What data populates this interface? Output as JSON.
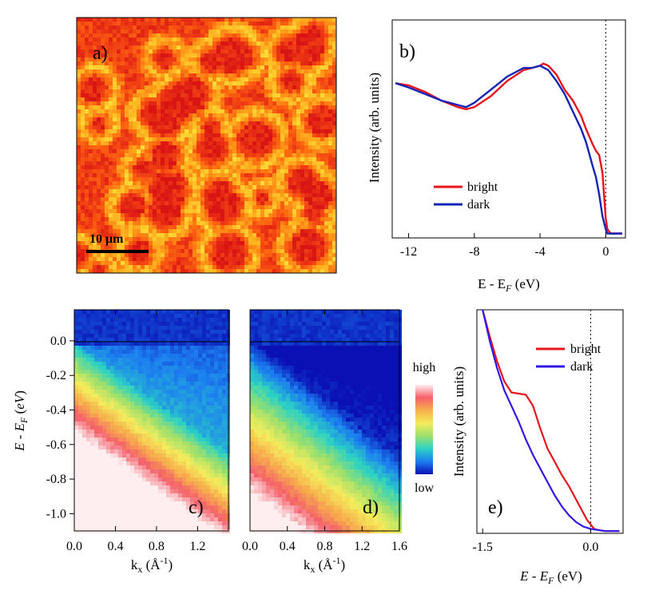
{
  "chart_data": [
    {
      "id": "a",
      "type": "heatmap",
      "panel_label": "a)",
      "scale_bar_label": "10 μm",
      "colors": [
        "#d91414",
        "#ee3a14",
        "#ff6a10",
        "#ffae1e",
        "#ffe43a"
      ]
    },
    {
      "id": "b",
      "type": "line",
      "panel_label": "b)",
      "xlabel": "E - E_F (eV)",
      "ylabel": "Intensity (arb. units)",
      "xlim": [
        -13,
        1.2
      ],
      "ylim": [
        0,
        1
      ],
      "xticks": [
        -12,
        -8,
        -4,
        0
      ],
      "xtick_labels": [
        "-12",
        "-8",
        "-4",
        "0"
      ],
      "fermi_line_x": 0,
      "legend": "center-left",
      "series": [
        {
          "name": "bright",
          "color": "#e8141c",
          "x": [
            -12.8,
            -12,
            -11,
            -10,
            -9,
            -8.5,
            -8,
            -7,
            -6,
            -5,
            -4.5,
            -4,
            -3.8,
            -3.5,
            -3,
            -2.5,
            -2,
            -1.5,
            -1.2,
            -0.8,
            -0.6,
            -0.4,
            -0.2,
            0,
            0.1,
            0.3,
            0.6,
            1.0
          ],
          "y": [
            0.71,
            0.7,
            0.67,
            0.63,
            0.6,
            0.59,
            0.6,
            0.65,
            0.72,
            0.77,
            0.78,
            0.79,
            0.8,
            0.79,
            0.75,
            0.68,
            0.63,
            0.56,
            0.5,
            0.43,
            0.4,
            0.38,
            0.3,
            0.09,
            0.04,
            0.02,
            0.02,
            0.02
          ]
        },
        {
          "name": "dark",
          "color": "#1424b4",
          "x": [
            -12.8,
            -12,
            -11,
            -10,
            -9,
            -8.5,
            -8,
            -7,
            -6,
            -5,
            -4.5,
            -4,
            -3.5,
            -3,
            -2.5,
            -2,
            -1.5,
            -1.2,
            -0.8,
            -0.6,
            -0.4,
            -0.2,
            0,
            0.1,
            0.3,
            0.6,
            1.0
          ],
          "y": [
            0.71,
            0.69,
            0.66,
            0.63,
            0.61,
            0.6,
            0.62,
            0.68,
            0.74,
            0.78,
            0.78,
            0.79,
            0.77,
            0.72,
            0.66,
            0.58,
            0.5,
            0.44,
            0.33,
            0.28,
            0.2,
            0.1,
            0.04,
            0.02,
            0.02,
            0.02,
            0.02
          ]
        }
      ]
    },
    {
      "id": "c",
      "type": "heatmap",
      "panel_label": "c)",
      "xlabel": "k_x (Å^-1)",
      "ylabel": "E - E_F (eV)",
      "xlim": [
        0,
        1.5
      ],
      "ylim": [
        -1.1,
        0.18
      ],
      "xticks": [
        0,
        0.4,
        0.8,
        1.2
      ],
      "xtick_labels": [
        "0.0",
        "0.4",
        "0.8",
        "1.2"
      ],
      "yticks": [
        0,
        -0.2,
        -0.4,
        -0.6,
        -0.8,
        -1.0
      ],
      "ytick_labels": [
        "0.0",
        "-0.2",
        "-0.4",
        "-0.6",
        "-0.8",
        "-1.0"
      ],
      "intensity": "bright"
    },
    {
      "id": "d",
      "type": "heatmap",
      "panel_label": "d)",
      "xlabel": "k_x (Å^-1)",
      "xlim": [
        0,
        1.6
      ],
      "ylim": [
        -1.1,
        0.18
      ],
      "xticks": [
        0,
        0.4,
        0.8,
        1.2,
        1.6
      ],
      "xtick_labels": [
        "0.0",
        "0.4",
        "0.8",
        "1.2",
        "1.6"
      ],
      "intensity": "dark",
      "colorbar": {
        "high_label": "high",
        "low_label": "low",
        "colors": [
          "#ffeef0",
          "#f4606a",
          "#f7b04c",
          "#f4ec5c",
          "#9ce06c",
          "#2cd2c4",
          "#1c7ef0",
          "#0a10b4"
        ]
      }
    },
    {
      "id": "e",
      "type": "line",
      "panel_label": "e)",
      "xlabel": "E - E_F (eV)",
      "ylabel": "Intensity (arb. units)",
      "xlim": [
        -1.58,
        0.45
      ],
      "ylim": [
        0,
        1
      ],
      "xticks": [
        -1.5,
        0
      ],
      "xtick_labels": [
        "-1.5",
        "0.0"
      ],
      "fermi_line_x": 0,
      "legend": "top-right",
      "series": [
        {
          "name": "bright",
          "color": "#e8141c",
          "x": [
            -1.5,
            -1.4,
            -1.3,
            -1.2,
            -1.1,
            -1.0,
            -0.9,
            -0.8,
            -0.7,
            -0.6,
            -0.5,
            -0.4,
            -0.3,
            -0.2,
            -0.1,
            -0.05,
            0,
            0.05,
            0.1,
            0.2,
            0.3,
            0.4
          ],
          "y": [
            1.0,
            0.88,
            0.77,
            0.68,
            0.63,
            0.625,
            0.62,
            0.57,
            0.47,
            0.38,
            0.32,
            0.26,
            0.21,
            0.15,
            0.09,
            0.06,
            0.04,
            0.02,
            0.015,
            0.01,
            0.01,
            0.01
          ]
        },
        {
          "name": "dark",
          "color": "#3218e6",
          "x": [
            -1.5,
            -1.4,
            -1.3,
            -1.2,
            -1.1,
            -1.0,
            -0.9,
            -0.8,
            -0.7,
            -0.6,
            -0.5,
            -0.4,
            -0.3,
            -0.2,
            -0.1,
            0,
            0.1,
            0.2,
            0.3,
            0.4
          ],
          "y": [
            1.0,
            0.86,
            0.74,
            0.64,
            0.57,
            0.5,
            0.42,
            0.35,
            0.29,
            0.23,
            0.17,
            0.12,
            0.08,
            0.05,
            0.03,
            0.02,
            0.015,
            0.01,
            0.01,
            0.01
          ]
        }
      ]
    }
  ]
}
